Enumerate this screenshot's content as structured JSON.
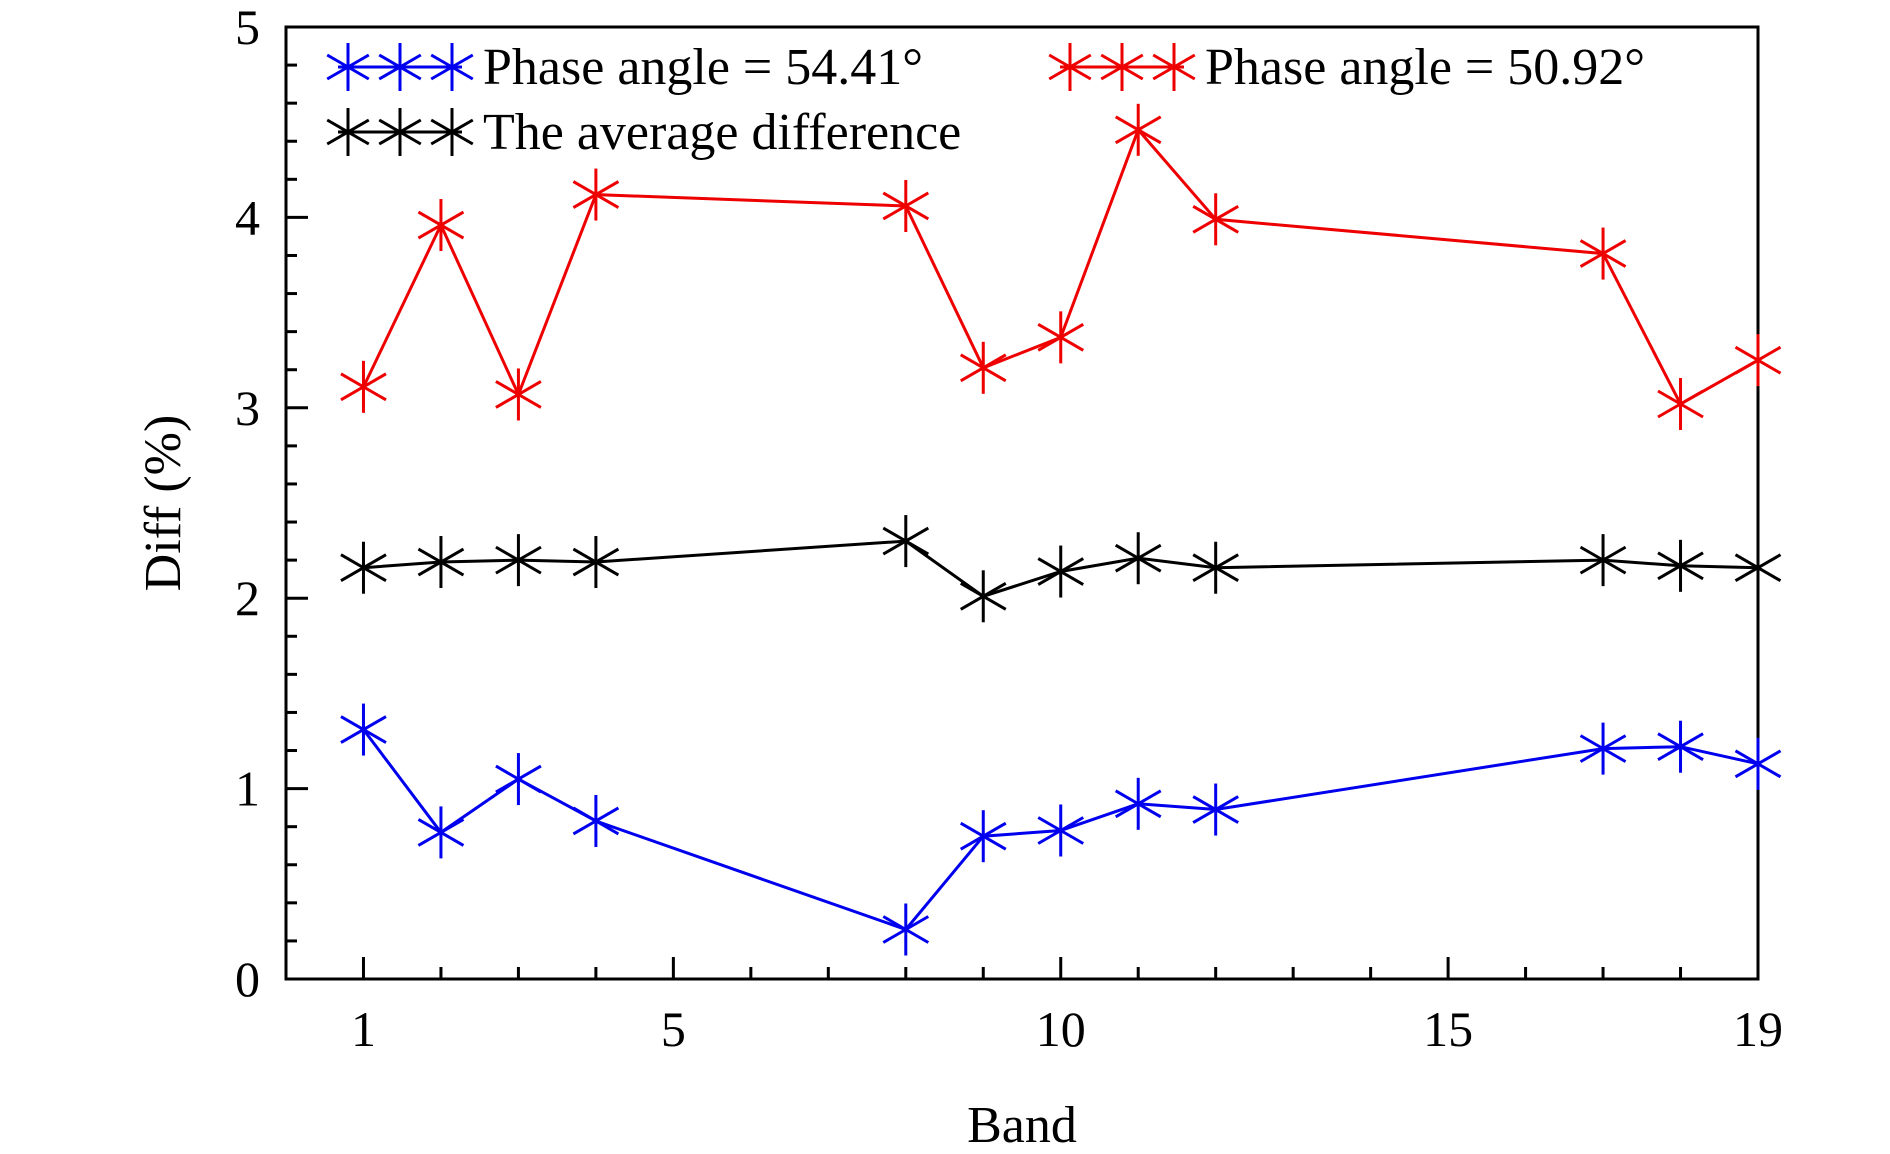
{
  "chart_data": {
    "type": "line",
    "title": "",
    "xlabel": "Band",
    "ylabel": "Diff (%)",
    "xlim": [
      0,
      19
    ],
    "ylim": [
      0,
      5
    ],
    "xticks": [
      1,
      5,
      10,
      15,
      19
    ],
    "xtick_labels": [
      "1",
      "5",
      "10",
      "15",
      "19"
    ],
    "x_minor_ticks": [
      2,
      3,
      4,
      6,
      7,
      8,
      9,
      11,
      12,
      13,
      14,
      16,
      17,
      18
    ],
    "yticks": [
      0,
      1,
      2,
      3,
      4,
      5
    ],
    "ytick_labels": [
      "0",
      "1",
      "2",
      "3",
      "4",
      "5"
    ],
    "y_minor_step": 0.2,
    "grid": false,
    "legend_position": "top",
    "x": [
      1,
      2,
      3,
      4,
      8,
      9,
      10,
      11,
      12,
      17,
      18,
      19
    ],
    "series": [
      {
        "name": "Phase angle = 54.41°",
        "color": "#0000ee",
        "marker": "asterisk",
        "values": [
          1.31,
          0.77,
          1.05,
          0.83,
          0.26,
          0.75,
          0.78,
          0.92,
          0.89,
          1.21,
          1.22,
          1.13
        ]
      },
      {
        "name": "Phase angle = 50.92°",
        "color": "#ee0000",
        "marker": "asterisk",
        "values": [
          3.11,
          3.96,
          3.07,
          4.12,
          4.06,
          3.21,
          3.37,
          4.46,
          3.99,
          3.81,
          3.02,
          3.25
        ]
      },
      {
        "name": "The average difference",
        "color": "#000000",
        "marker": "asterisk",
        "values": [
          2.16,
          2.19,
          2.2,
          2.19,
          2.3,
          2.01,
          2.14,
          2.21,
          2.16,
          2.2,
          2.17,
          2.16
        ]
      }
    ]
  }
}
